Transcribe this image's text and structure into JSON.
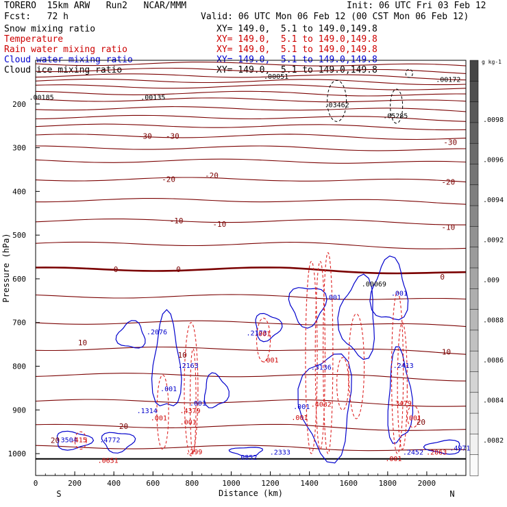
{
  "header": {
    "left1": "TORERO  15km ARW   Run2   NCAR/MMM",
    "left2": "Fcst:   72 h",
    "init": "Init: 06 UTC Fri 03 Feb 12",
    "valid": "Valid: 06 UTC Mon 06 Feb 12 (00 CST Mon 06 Feb 12)",
    "fields": [
      {
        "name": "Snow mixing ratio",
        "color": "#000000",
        "xy": ""
      },
      {
        "name": "Temperature",
        "color": "#cc0000",
        "xy": "XY= 149.0,  5.1 to 149.0,149.8"
      },
      {
        "name": "Rain water mixing ratio",
        "color": "#cc0000",
        "xy": "XY= 149.0,  5.1 to 149.0,149.8"
      },
      {
        "name": "Cloud water mixing ratio",
        "color": "#0000cc",
        "xy": "XY= 149.0,  5.1 to 149.0,149.8"
      },
      {
        "name": "Cloud ice mixing ratio",
        "color": "#000000",
        "xy": "XY= 149.0,  5.1 to 149.0,149.8"
      }
    ],
    "snow_xy": "XY= 149.0,  5.1 to 149.0,149.8"
  },
  "chart_data": {
    "type": "contour-cross-section",
    "xlabel": "Distance (km)",
    "ylabel": "Pressure (hPa)",
    "xlim": [
      0,
      2200
    ],
    "ylim": [
      1050,
      100
    ],
    "x_ticks": [
      "0",
      "200",
      "400",
      "600",
      "800",
      "1000",
      "1200",
      "1400",
      "1600",
      "1800",
      "2000"
    ],
    "y_ticks": [
      "200",
      "300",
      "400",
      "500",
      "600",
      "700",
      "800",
      "900",
      "1000"
    ],
    "end_labels": {
      "left": "S",
      "right": "N"
    },
    "colorbar": {
      "unit": "g kg-1",
      "labels": [
        ".0098",
        ".0096",
        ".0094",
        ".0092",
        ".009",
        ".0088",
        ".0086",
        ".0084",
        ".0082"
      ]
    },
    "temperature_labels": [
      {
        "x": 560,
        "p": 273,
        "text": "-30"
      },
      {
        "x": 700,
        "p": 273,
        "text": "-30"
      },
      {
        "x": 2120,
        "p": 287,
        "text": "-30"
      },
      {
        "x": 680,
        "p": 372,
        "text": "-20"
      },
      {
        "x": 900,
        "p": 363,
        "text": "-20"
      },
      {
        "x": 2110,
        "p": 378,
        "text": "-20"
      },
      {
        "x": 720,
        "p": 467,
        "text": "-10"
      },
      {
        "x": 940,
        "p": 475,
        "text": "-10"
      },
      {
        "x": 2110,
        "p": 482,
        "text": "-10"
      },
      {
        "x": 410,
        "p": 578,
        "text": "0"
      },
      {
        "x": 730,
        "p": 578,
        "text": "0"
      },
      {
        "x": 2080,
        "p": 595,
        "text": "0"
      },
      {
        "x": 240,
        "p": 746,
        "text": "10"
      },
      {
        "x": 750,
        "p": 774,
        "text": "10"
      },
      {
        "x": 2100,
        "p": 767,
        "text": "10"
      },
      {
        "x": 450,
        "p": 937,
        "text": "20"
      },
      {
        "x": 1970,
        "p": 928,
        "text": "20"
      },
      {
        "x": 100,
        "p": 969,
        "text": "20"
      }
    ],
    "max_labels": [
      {
        "x": 1230,
        "p": 128,
        "h": ".00051",
        "color": "#000000"
      },
      {
        "x": 2110,
        "p": 135,
        "h": ".00172",
        "color": "#000000"
      },
      {
        "x": 600,
        "p": 176,
        "h": ".00135",
        "color": "#000000"
      },
      {
        "x": 30,
        "p": 176,
        "h": ".00185",
        "color": "#000000"
      },
      {
        "x": 1540,
        "p": 193,
        "h": ".03462",
        "color": "#000000"
      },
      {
        "x": 1840,
        "p": 218,
        "h": ".05285",
        "color": "#000000"
      },
      {
        "x": 1730,
        "p": 603,
        "h": ".00069",
        "color": "#000000"
      },
      {
        "x": 1520,
        "p": 634,
        "h": ".001",
        "color": "#0000cc"
      },
      {
        "x": 1860,
        "p": 624,
        "h": ".001",
        "color": "#0000cc"
      },
      {
        "x": 620,
        "p": 713,
        "h": ".2076",
        "color": "#0000cc"
      },
      {
        "x": 1130,
        "p": 715,
        "h": ".2173",
        "color": "#0000cc"
      },
      {
        "x": 1160,
        "p": 717,
        "h": ".001",
        "color": "#cc0000"
      },
      {
        "x": 780,
        "p": 790,
        "h": ".2163",
        "color": "#0000cc"
      },
      {
        "x": 1460,
        "p": 794,
        "h": ".3136",
        "color": "#0000cc"
      },
      {
        "x": 1880,
        "p": 790,
        "h": ".2413",
        "color": "#0000cc"
      },
      {
        "x": 1200,
        "p": 777,
        "h": ".001",
        "color": "#cc0000"
      },
      {
        "x": 680,
        "p": 843,
        "h": ".001",
        "color": "#0000cc"
      },
      {
        "x": 830,
        "p": 876,
        "h": ".001",
        "color": "#0000cc"
      },
      {
        "x": 570,
        "p": 893,
        "h": ".1314",
        "color": "#0000cc"
      },
      {
        "x": 790,
        "p": 893,
        "h": ".4379",
        "color": "#cc0000"
      },
      {
        "x": 1460,
        "p": 878,
        "h": ".4032",
        "color": "#cc0000"
      },
      {
        "x": 1870,
        "p": 876,
        "h": ".3479",
        "color": "#cc0000"
      },
      {
        "x": 1360,
        "p": 884,
        "h": ".001",
        "color": "#0000cc"
      },
      {
        "x": 630,
        "p": 910,
        "h": ".001",
        "color": "#cc0000"
      },
      {
        "x": 780,
        "p": 919,
        "h": ".001",
        "color": "#cc0000"
      },
      {
        "x": 1350,
        "p": 909,
        "h": ".001",
        "color": "#cc0000"
      },
      {
        "x": 1930,
        "p": 910,
        "h": ".001",
        "color": "#cc0000"
      },
      {
        "x": 160,
        "p": 960,
        "h": ".3504",
        "color": "#0000cc"
      },
      {
        "x": 220,
        "p": 960,
        "h": ".415",
        "color": "#cc0000"
      },
      {
        "x": 380,
        "p": 960,
        "h": ".4772",
        "color": "#0000cc"
      },
      {
        "x": 1250,
        "p": 988,
        "h": ".2333",
        "color": "#0000cc"
      },
      {
        "x": 1930,
        "p": 988,
        "h": ".2452",
        "color": "#0000cc"
      },
      {
        "x": 2050,
        "p": 988,
        "h": ".2063",
        "color": "#cc0000"
      },
      {
        "x": 2170,
        "p": 979,
        "h": ".4971",
        "color": "#0000cc"
      },
      {
        "x": 810,
        "p": 987,
        "h": ".299",
        "color": "#cc0000"
      },
      {
        "x": 1080,
        "p": 1000,
        "h": ".0852",
        "color": "#0000cc"
      },
      {
        "x": 370,
        "p": 1007,
        "h": ".0651",
        "color": "#cc0000"
      },
      {
        "x": 1830,
        "p": 1003,
        "h": ".001",
        "color": "#cc0000"
      }
    ]
  }
}
